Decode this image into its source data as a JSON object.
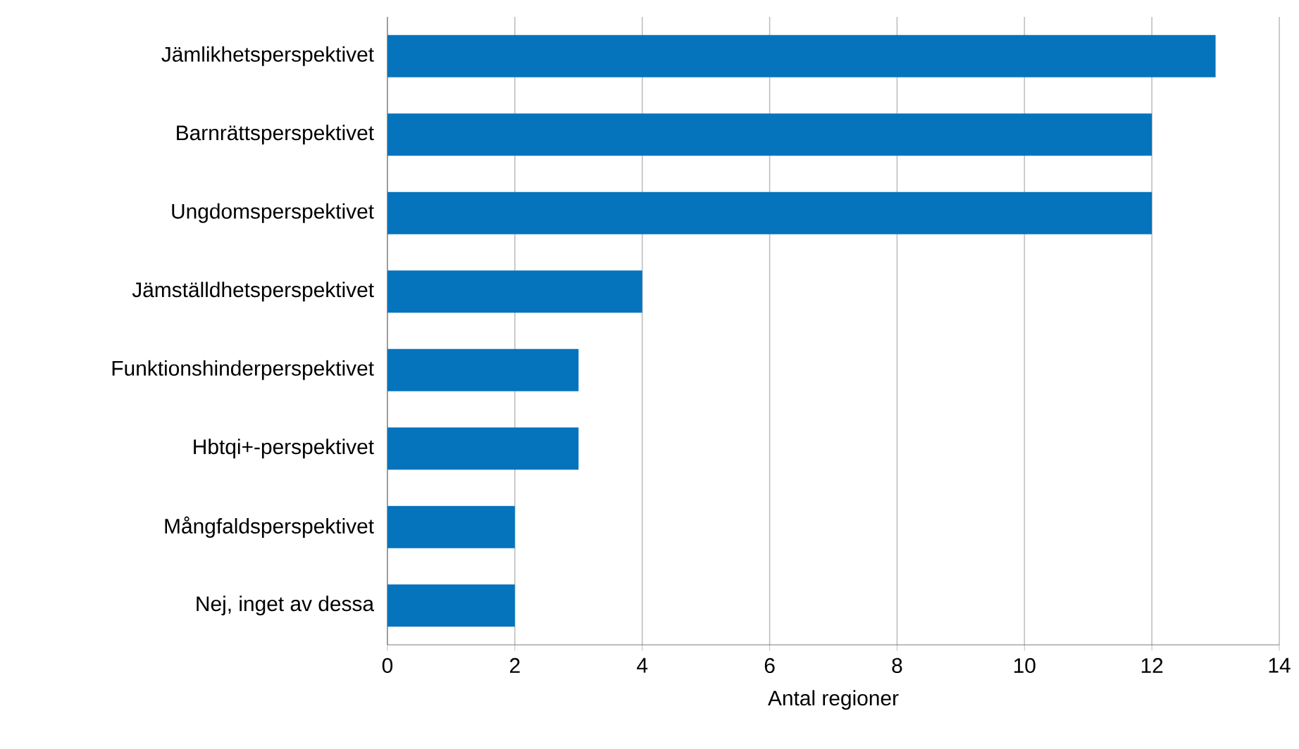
{
  "chart_data": {
    "type": "bar",
    "orientation": "horizontal",
    "categories": [
      "Jämlikhetsperspektivet",
      "Barnrättsperspektivet",
      "Ungdomsperspektivet",
      "Jämställdhetsperspektivet",
      "Funktionshinderperspektivet",
      "Hbtqi+-perspektivet",
      "Mångfaldsperspektivet",
      "Nej, inget av dessa"
    ],
    "values": [
      13,
      12,
      12,
      4,
      3,
      3,
      2,
      2
    ],
    "color": "#0673bd",
    "xlim": [
      0,
      14
    ],
    "xticks": [
      0,
      2,
      4,
      6,
      8,
      10,
      12,
      14
    ],
    "xlabel": "Antal regioner",
    "grid": "x"
  }
}
